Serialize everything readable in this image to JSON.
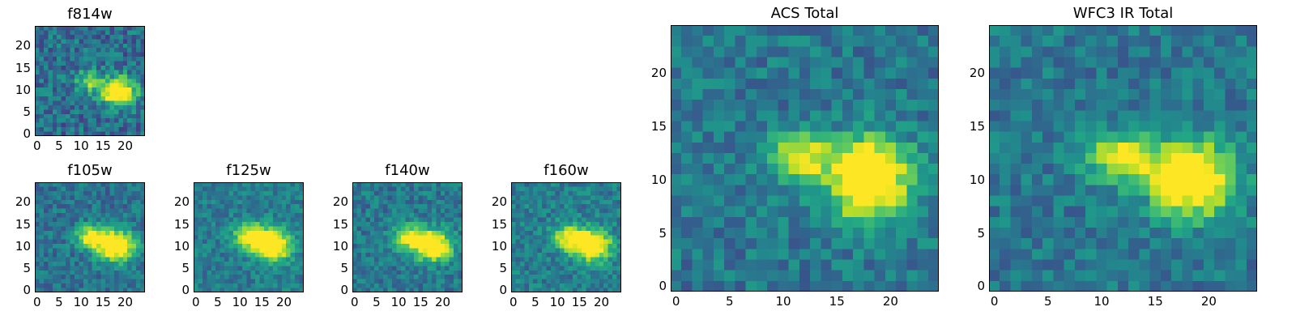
{
  "panels": [
    {
      "id": "f814w",
      "title": "f814w",
      "xticks": [
        "0",
        "5",
        "10",
        "15",
        "20"
      ],
      "yticks": [
        "0",
        "5",
        "10",
        "15",
        "20"
      ],
      "blob": [
        {
          "cx": 12,
          "cy": 12,
          "sx": 2.0,
          "sy": 1.6,
          "a": 0.55
        },
        {
          "cx": 18.5,
          "cy": 9.5,
          "sx": 2.6,
          "sy": 2.2,
          "a": 0.95
        }
      ],
      "bg": 0.36,
      "noise": 0.18
    },
    {
      "id": "f105w",
      "title": "f105w",
      "xticks": [
        "0",
        "5",
        "10",
        "15",
        "20"
      ],
      "yticks": [
        "0",
        "5",
        "10",
        "15",
        "20"
      ],
      "blob": [
        {
          "cx": 12,
          "cy": 12,
          "sx": 2.4,
          "sy": 1.8,
          "a": 0.6
        },
        {
          "cx": 18,
          "cy": 10,
          "sx": 3.0,
          "sy": 2.4,
          "a": 0.9
        }
      ],
      "bg": 0.38,
      "noise": 0.14
    },
    {
      "id": "f125w",
      "title": "f125w",
      "xticks": [
        "0",
        "5",
        "10",
        "15",
        "20"
      ],
      "yticks": [
        "0",
        "5",
        "10",
        "15",
        "20"
      ],
      "blob": [
        {
          "cx": 12.5,
          "cy": 12.5,
          "sx": 2.6,
          "sy": 2.0,
          "a": 0.6
        },
        {
          "cx": 17.5,
          "cy": 10,
          "sx": 3.0,
          "sy": 2.4,
          "a": 0.8
        }
      ],
      "bg": 0.42,
      "noise": 0.13
    },
    {
      "id": "f140w",
      "title": "f140w",
      "xticks": [
        "0",
        "5",
        "10",
        "15",
        "20"
      ],
      "yticks": [
        "0",
        "5",
        "10",
        "15",
        "20"
      ],
      "blob": [
        {
          "cx": 12.5,
          "cy": 12,
          "sx": 2.6,
          "sy": 2.0,
          "a": 0.6
        },
        {
          "cx": 18,
          "cy": 10,
          "sx": 3.0,
          "sy": 2.4,
          "a": 0.8
        }
      ],
      "bg": 0.4,
      "noise": 0.14
    },
    {
      "id": "f160w",
      "title": "f160w",
      "xticks": [
        "0",
        "5",
        "10",
        "15",
        "20"
      ],
      "yticks": [
        "0",
        "5",
        "10",
        "15",
        "20"
      ],
      "blob": [
        {
          "cx": 12.5,
          "cy": 12,
          "sx": 2.6,
          "sy": 2.0,
          "a": 0.6
        },
        {
          "cx": 18,
          "cy": 10,
          "sx": 3.0,
          "sy": 2.4,
          "a": 0.8
        }
      ],
      "bg": 0.42,
      "noise": 0.14
    },
    {
      "id": "acs-total",
      "title": "ACS Total",
      "xticks": [
        "0",
        "5",
        "10",
        "15",
        "20"
      ],
      "yticks": [
        "0",
        "5",
        "10",
        "15",
        "20"
      ],
      "blob": [
        {
          "cx": 11.5,
          "cy": 12,
          "sx": 2.0,
          "sy": 1.5,
          "a": 0.6
        },
        {
          "cx": 18,
          "cy": 10,
          "sx": 2.6,
          "sy": 2.6,
          "a": 0.95
        }
      ],
      "bg": 0.4,
      "noise": 0.14
    },
    {
      "id": "wfc3-ir-total",
      "title": "WFC3 IR Total",
      "xticks": [
        "0",
        "5",
        "10",
        "15",
        "20"
      ],
      "yticks": [
        "0",
        "5",
        "10",
        "15",
        "20"
      ],
      "blob": [
        {
          "cx": 12,
          "cy": 12,
          "sx": 2.4,
          "sy": 1.6,
          "a": 0.6
        },
        {
          "cx": 18.5,
          "cy": 10,
          "sx": 2.6,
          "sy": 2.4,
          "a": 0.9
        }
      ],
      "bg": 0.4,
      "noise": 0.13
    }
  ],
  "colormap": "viridis"
}
